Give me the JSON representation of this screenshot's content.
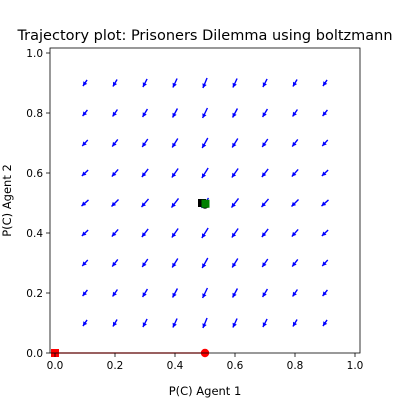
{
  "chart_data": {
    "type": "scatter",
    "title": "Trajectory plot: Prisoners Dilemma using boltzmann",
    "xlabel": "P(C) Agent 1",
    "ylabel": "P(C) Agent 2",
    "xlim": [
      0,
      1
    ],
    "ylim": [
      0,
      1
    ],
    "xticks": [
      "0.0",
      "0.2",
      "0.4",
      "0.6",
      "0.8",
      "1.0"
    ],
    "yticks": [
      "0.0",
      "0.2",
      "0.4",
      "0.6",
      "0.8",
      "1.0"
    ],
    "grid": false,
    "vector_field": {
      "color": "#0000ff",
      "x": [
        0.1,
        0.2,
        0.3,
        0.4,
        0.5,
        0.6,
        0.7,
        0.8,
        0.9
      ],
      "y": [
        0.1,
        0.2,
        0.3,
        0.4,
        0.5,
        0.6,
        0.7,
        0.8,
        0.9
      ],
      "direction": "toward lower-left (both probabilities decreasing)"
    },
    "series": [
      {
        "color": "#ff0000",
        "x": [
          0.5,
          0.0
        ],
        "y": [
          0.0,
          0.0
        ],
        "start": "circle",
        "end": "square"
      },
      {
        "color": "#008000",
        "x": [
          0.5,
          0.49
        ],
        "y": [
          0.495,
          0.5
        ],
        "start": "circle",
        "end": "square",
        "start_color": "#000000",
        "end_color": "#000000",
        "marker_color": "#008000"
      }
    ]
  }
}
